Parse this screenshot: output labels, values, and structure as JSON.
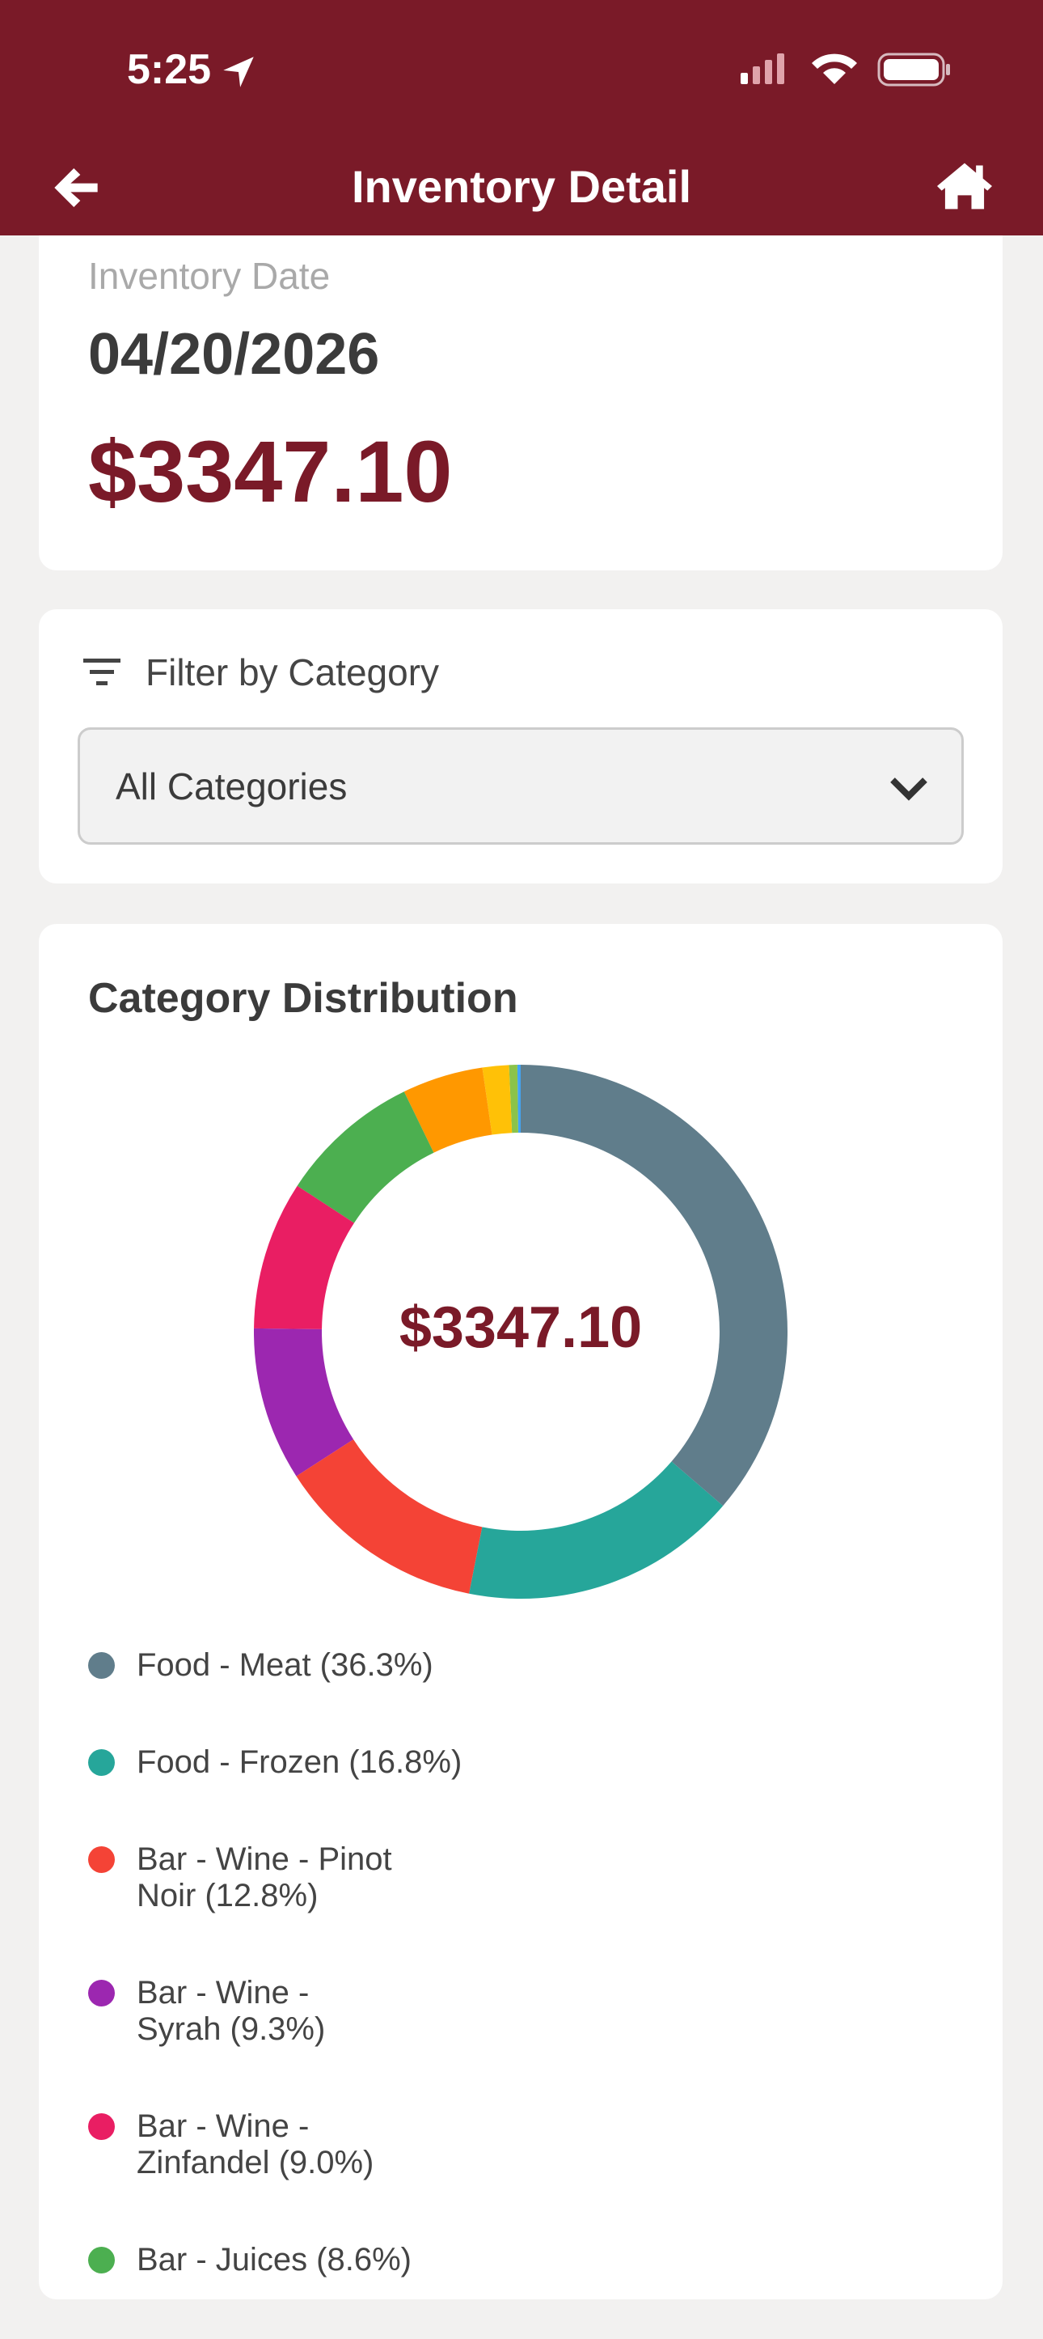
{
  "status_bar": {
    "time": "5:25"
  },
  "header": {
    "title": "Inventory Detail"
  },
  "inventory": {
    "date_label": "Inventory Date",
    "date": "04/20/2026",
    "total": "$3347.10"
  },
  "filter": {
    "label": "Filter by Category",
    "selected": "All Categories"
  },
  "chart_data": {
    "type": "pie",
    "title": "Category Distribution",
    "categories": [
      "Food - Meat",
      "Food - Frozen",
      "Bar - Wine - Pinot Noir",
      "Bar - Wine - Syrah",
      "Bar - Wine - Zinfandel",
      "Bar - Juices",
      null,
      null,
      null,
      null
    ],
    "values": [
      36.3,
      16.8,
      12.8,
      9.3,
      9.0,
      8.6,
      4.9,
      1.6,
      0.5,
      0.2
    ],
    "value_labels": [
      "(36.3%)",
      "(16.8%)",
      "(12.8%)",
      "(9.3%)",
      "(9.0%)",
      "(8.6%)",
      null,
      null,
      null,
      null
    ],
    "colors": [
      "#607d8b",
      "#26a69a",
      "#f44336",
      "#9c27b0",
      "#e91e63",
      "#4caf50",
      "#ff9800",
      "#ffc107",
      "#8bc34a",
      "#42a5f5"
    ]
  }
}
